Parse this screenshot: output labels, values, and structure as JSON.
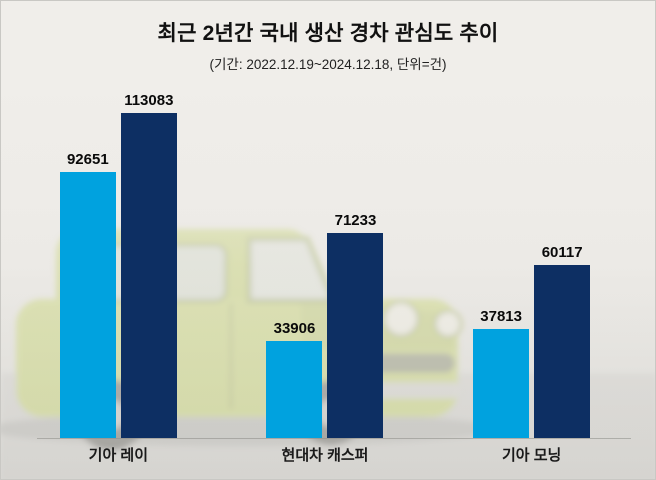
{
  "chart_data": {
    "type": "bar",
    "title": "최근 2년간 국내 생산 경차 관심도 추이",
    "subtitle": "(기간: 2022.12.19~2024.12.18, 단위=건)",
    "categories": [
      "기아 레이",
      "현대차 캐스퍼",
      "기아 모닝"
    ],
    "series": [
      {
        "name": "light-blue-series",
        "color": "#00a2df",
        "values": [
          92651,
          33906,
          37813
        ]
      },
      {
        "name": "navy-series",
        "color": "#0d2f63",
        "values": [
          113083,
          71233,
          60117
        ]
      }
    ],
    "ylim": [
      0,
      120000
    ],
    "grid": false,
    "legend": "none",
    "value_labels": true
  },
  "background": {
    "description_colors": {
      "car_body": "#b9cc49",
      "wheel": "#3c3c38",
      "ground_shadow": "#7e7e7a"
    }
  }
}
